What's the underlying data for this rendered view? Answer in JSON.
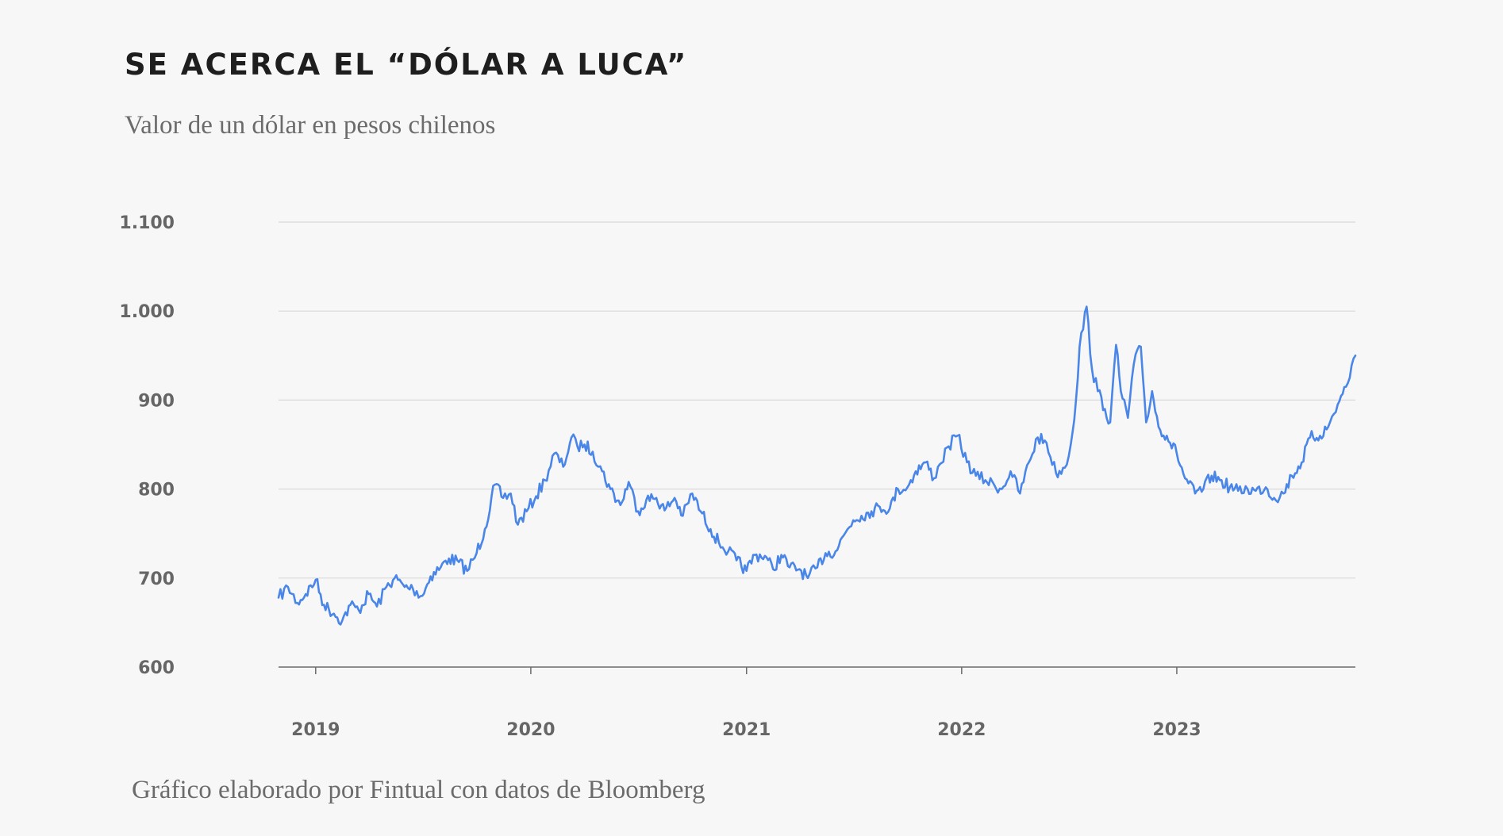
{
  "header": {
    "title": "SE ACERCA EL “DÓLAR A LUCA”",
    "subtitle": "Valor de un dólar en pesos chilenos"
  },
  "footer": {
    "source": "Gráfico elaborado por Fintual con datos de Bloomberg"
  },
  "colors": {
    "line": "#4a86e8",
    "grid": "#d9d9d9",
    "axis": "#6b6b6b",
    "background": "#f7f7f7"
  },
  "chart_data": {
    "type": "line",
    "title": "SE ACERCA EL “DÓLAR A LUCA”",
    "subtitle": "Valor de un dólar en pesos chilenos",
    "xlabel": "",
    "ylabel": "",
    "ylim": [
      600,
      1100
    ],
    "xlim": [
      "2018-10-30",
      "2023-10-31"
    ],
    "yticks": [
      600,
      700,
      800,
      900,
      1000,
      1100
    ],
    "ytick_labels": [
      "600",
      "700",
      "800",
      "900",
      "1.000",
      "1.100"
    ],
    "xticks": [
      "2019-01-01",
      "2020-01-01",
      "2021-01-01",
      "2022-01-01",
      "2023-01-01"
    ],
    "xtick_labels": [
      "2019",
      "2020",
      "2021",
      "2022",
      "2023"
    ],
    "grid": true,
    "legend": "none",
    "series": [
      {
        "x": [
          "2018-10-30",
          "2018-11-15",
          "2018-12-01",
          "2018-12-15",
          "2019-01-01",
          "2019-01-15",
          "2019-02-01",
          "2019-02-15",
          "2019-03-01",
          "2019-03-15",
          "2019-04-01",
          "2019-04-15",
          "2019-05-01",
          "2019-05-15",
          "2019-06-01",
          "2019-06-15",
          "2019-07-01",
          "2019-07-15",
          "2019-08-01",
          "2019-08-15",
          "2019-09-01",
          "2019-09-15",
          "2019-10-01",
          "2019-10-15",
          "2019-11-01",
          "2019-11-15",
          "2019-11-28",
          "2019-12-10",
          "2019-12-25",
          "2020-01-10",
          "2020-01-25",
          "2020-02-10",
          "2020-02-25",
          "2020-03-10",
          "2020-03-20",
          "2020-04-01",
          "2020-04-15",
          "2020-05-01",
          "2020-05-15",
          "2020-06-01",
          "2020-06-15",
          "2020-07-01",
          "2020-07-15",
          "2020-08-01",
          "2020-08-15",
          "2020-09-01",
          "2020-09-15",
          "2020-10-01",
          "2020-10-15",
          "2020-11-01",
          "2020-11-15",
          "2020-12-01",
          "2020-12-15",
          "2021-01-01",
          "2021-01-15",
          "2021-02-01",
          "2021-02-15",
          "2021-03-01",
          "2021-03-15",
          "2021-04-01",
          "2021-04-15",
          "2021-05-01",
          "2021-05-15",
          "2021-06-01",
          "2021-06-15",
          "2021-07-01",
          "2021-07-15",
          "2021-08-01",
          "2021-08-15",
          "2021-09-01",
          "2021-09-15",
          "2021-10-01",
          "2021-10-15",
          "2021-11-01",
          "2021-11-15",
          "2021-11-25",
          "2021-12-10",
          "2021-12-25",
          "2022-01-10",
          "2022-01-25",
          "2022-02-10",
          "2022-02-25",
          "2022-03-10",
          "2022-03-25",
          "2022-04-10",
          "2022-04-25",
          "2022-05-10",
          "2022-05-25",
          "2022-06-10",
          "2022-06-25",
          "2022-07-05",
          "2022-07-14",
          "2022-07-20",
          "2022-08-01",
          "2022-08-10",
          "2022-08-20",
          "2022-09-01",
          "2022-09-10",
          "2022-09-20",
          "2022-09-28",
          "2022-10-10",
          "2022-10-20",
          "2022-11-01",
          "2022-11-10",
          "2022-11-20",
          "2022-12-01",
          "2022-12-15",
          "2023-01-01",
          "2023-01-15",
          "2023-02-01",
          "2023-02-15",
          "2023-03-01",
          "2023-03-15",
          "2023-04-01",
          "2023-04-15",
          "2023-05-01",
          "2023-05-15",
          "2023-06-01",
          "2023-06-15",
          "2023-07-01",
          "2023-07-15",
          "2023-08-01",
          "2023-08-15",
          "2023-09-01",
          "2023-09-15",
          "2023-10-01",
          "2023-10-15",
          "2023-10-31"
        ],
        "values": [
          678,
          690,
          672,
          682,
          698,
          670,
          660,
          652,
          670,
          664,
          682,
          668,
          690,
          700,
          690,
          688,
          680,
          702,
          712,
          722,
          718,
          708,
          728,
          755,
          805,
          790,
          795,
          760,
          775,
          792,
          810,
          840,
          825,
          858,
          848,
          850,
          842,
          820,
          800,
          782,
          808,
          775,
          788,
          790,
          776,
          790,
          770,
          795,
          775,
          755,
          740,
          730,
          720,
          708,
          726,
          725,
          710,
          726,
          712,
          710,
          700,
          712,
          728,
          730,
          748,
          765,
          770,
          775,
          780,
          778,
          800,
          802,
          820,
          830,
          812,
          828,
          848,
          860,
          830,
          815,
          810,
          805,
          800,
          820,
          795,
          830,
          858,
          852,
          818,
          824,
          850,
          900,
          960,
          1005,
          935,
          910,
          890,
          875,
          962,
          910,
          880,
          940,
          960,
          875,
          910,
          870,
          860,
          840,
          812,
          795,
          800,
          815,
          810,
          802,
          798,
          800,
          798,
          802,
          790,
          795,
          815,
          830,
          858,
          860,
          870,
          895,
          915,
          950
        ]
      }
    ]
  }
}
